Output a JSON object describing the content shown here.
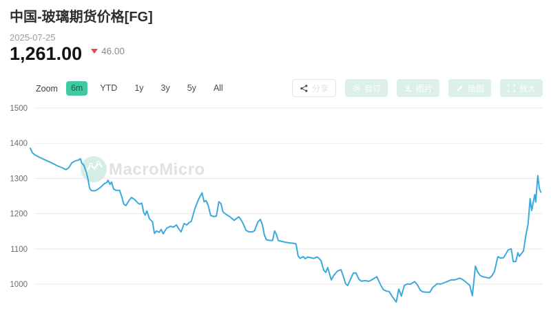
{
  "header": {
    "title": "中国-玻璃期货价格[FG]",
    "date": "2025-07-25",
    "price": "1,261.00",
    "change": "46.00",
    "change_direction": "down"
  },
  "toolbar": {
    "zoom_label": "Zoom",
    "ranges": [
      {
        "label": "6m",
        "active": true
      },
      {
        "label": "YTD",
        "active": false
      },
      {
        "label": "1y",
        "active": false
      },
      {
        "label": "3y",
        "active": false
      },
      {
        "label": "5y",
        "active": false
      },
      {
        "label": "All",
        "active": false
      }
    ],
    "actions": [
      {
        "label": "分享",
        "icon": "share-icon"
      },
      {
        "label": "自订",
        "icon": "gear-icon"
      },
      {
        "label": "图片",
        "icon": "download-icon"
      },
      {
        "label": "绘图",
        "icon": "pencil-icon"
      },
      {
        "label": "放大",
        "icon": "expand-icon"
      }
    ]
  },
  "watermark": {
    "text": "MacroMicro"
  },
  "colors": {
    "accent_teal": "#41c9a2",
    "line_blue": "#3aa9dc",
    "change_red": "#e5484d",
    "gridline": "#e9e9e9",
    "axis_label": "#6b6b6b"
  },
  "chart_data": {
    "type": "line",
    "title": "中国-玻璃期货价格[FG]",
    "window": "6m",
    "last_date": "2025-07-25",
    "last_value": 1261.0,
    "change": -46.0,
    "xlabel": "",
    "ylabel": "",
    "yticks": [
      1500,
      1400,
      1300,
      1200,
      1100,
      1000
    ],
    "ylim": [
      1000,
      1500
    ],
    "grid": true,
    "x_unit": "percent_of_6m_window",
    "series": [
      {
        "name": "玻璃期货价格[FG]",
        "color": "#3aa9dc",
        "points": [
          [
            0,
            1386
          ],
          [
            0.4,
            1373
          ],
          [
            0.9,
            1367
          ],
          [
            1.8,
            1360
          ],
          [
            2.7,
            1354
          ],
          [
            3.9,
            1346
          ],
          [
            5.3,
            1336
          ],
          [
            6.3,
            1330
          ],
          [
            7.0,
            1325
          ],
          [
            7.5,
            1330
          ],
          [
            8.1,
            1344
          ],
          [
            8.8,
            1350
          ],
          [
            9.4,
            1352
          ],
          [
            9.8,
            1356
          ],
          [
            10.1,
            1343
          ],
          [
            10.5,
            1337
          ],
          [
            10.9,
            1320
          ],
          [
            11.3,
            1298
          ],
          [
            11.6,
            1272
          ],
          [
            12.0,
            1265
          ],
          [
            12.7,
            1265
          ],
          [
            13.2,
            1269
          ],
          [
            13.9,
            1277
          ],
          [
            14.4,
            1284
          ],
          [
            15.0,
            1289
          ],
          [
            15.2,
            1295
          ],
          [
            15.6,
            1283
          ],
          [
            15.9,
            1290
          ],
          [
            16.3,
            1270
          ],
          [
            16.8,
            1266
          ],
          [
            17.5,
            1266
          ],
          [
            17.9,
            1248
          ],
          [
            18.3,
            1227
          ],
          [
            18.7,
            1223
          ],
          [
            19.3,
            1237
          ],
          [
            19.8,
            1246
          ],
          [
            20.5,
            1239
          ],
          [
            21.0,
            1231
          ],
          [
            21.4,
            1227
          ],
          [
            21.8,
            1230
          ],
          [
            22.2,
            1203
          ],
          [
            22.5,
            1196
          ],
          [
            22.8,
            1208
          ],
          [
            23.3,
            1186
          ],
          [
            23.9,
            1177
          ],
          [
            24.3,
            1144
          ],
          [
            24.7,
            1151
          ],
          [
            25.2,
            1147
          ],
          [
            25.6,
            1155
          ],
          [
            26.0,
            1143
          ],
          [
            26.7,
            1159
          ],
          [
            27.4,
            1164
          ],
          [
            28.0,
            1162
          ],
          [
            28.6,
            1168
          ],
          [
            29.0,
            1158
          ],
          [
            29.5,
            1148
          ],
          [
            30.1,
            1172
          ],
          [
            30.6,
            1168
          ],
          [
            31.1,
            1175
          ],
          [
            31.5,
            1178
          ],
          [
            32.2,
            1214
          ],
          [
            32.9,
            1240
          ],
          [
            33.6,
            1259
          ],
          [
            34.0,
            1234
          ],
          [
            34.4,
            1237
          ],
          [
            34.8,
            1224
          ],
          [
            35.3,
            1195
          ],
          [
            35.8,
            1192
          ],
          [
            36.4,
            1193
          ],
          [
            36.9,
            1234
          ],
          [
            37.3,
            1229
          ],
          [
            37.7,
            1205
          ],
          [
            38.3,
            1198
          ],
          [
            38.9,
            1193
          ],
          [
            39.5,
            1186
          ],
          [
            39.9,
            1181
          ],
          [
            40.4,
            1187
          ],
          [
            40.8,
            1191
          ],
          [
            41.2,
            1183
          ],
          [
            41.6,
            1173
          ],
          [
            42.2,
            1153
          ],
          [
            42.7,
            1149
          ],
          [
            43.4,
            1148
          ],
          [
            43.9,
            1152
          ],
          [
            44.5,
            1176
          ],
          [
            45.0,
            1184
          ],
          [
            45.4,
            1169
          ],
          [
            45.8,
            1140
          ],
          [
            46.2,
            1126
          ],
          [
            46.9,
            1124
          ],
          [
            47.4,
            1124
          ],
          [
            47.8,
            1151
          ],
          [
            48.2,
            1140
          ],
          [
            48.5,
            1124
          ],
          [
            49.2,
            1121
          ],
          [
            49.9,
            1119
          ],
          [
            50.7,
            1117
          ],
          [
            51.5,
            1116
          ],
          [
            52.0,
            1114
          ],
          [
            52.4,
            1080
          ],
          [
            52.8,
            1073
          ],
          [
            53.4,
            1078
          ],
          [
            53.8,
            1072
          ],
          [
            54.3,
            1077
          ],
          [
            54.9,
            1075
          ],
          [
            55.5,
            1073
          ],
          [
            56.1,
            1077
          ],
          [
            56.5,
            1073
          ],
          [
            56.9,
            1066
          ],
          [
            57.4,
            1040
          ],
          [
            57.8,
            1033
          ],
          [
            58.2,
            1047
          ],
          [
            58.9,
            1012
          ],
          [
            59.4,
            1025
          ],
          [
            60.1,
            1037
          ],
          [
            60.8,
            1041
          ],
          [
            61.3,
            1020
          ],
          [
            61.7,
            1001
          ],
          [
            62.1,
            996
          ],
          [
            62.7,
            1015
          ],
          [
            63.2,
            1031
          ],
          [
            63.7,
            1032
          ],
          [
            64.3,
            1014
          ],
          [
            64.8,
            1008
          ],
          [
            65.5,
            1010
          ],
          [
            66.2,
            1008
          ],
          [
            66.8,
            1012
          ],
          [
            67.8,
            1021
          ],
          [
            68.6,
            996
          ],
          [
            69.1,
            984
          ],
          [
            69.7,
            980
          ],
          [
            70.2,
            979
          ],
          [
            70.9,
            963
          ],
          [
            71.6,
            949
          ],
          [
            72.1,
            986
          ],
          [
            72.6,
            966
          ],
          [
            73.2,
            996
          ],
          [
            73.7,
            1000
          ],
          [
            74.4,
            1000
          ],
          [
            75.2,
            1007
          ],
          [
            75.7,
            999
          ],
          [
            76.3,
            983
          ],
          [
            76.8,
            978
          ],
          [
            77.5,
            977
          ],
          [
            78.2,
            977
          ],
          [
            78.7,
            990
          ],
          [
            79.6,
            1001
          ],
          [
            80.3,
            1000
          ],
          [
            81.0,
            1004
          ],
          [
            81.7,
            1008
          ],
          [
            82.3,
            1012
          ],
          [
            83.0,
            1012
          ],
          [
            84.0,
            1017
          ],
          [
            84.6,
            1013
          ],
          [
            85.3,
            1005
          ],
          [
            86.0,
            996
          ],
          [
            86.5,
            967
          ],
          [
            87.1,
            1051
          ],
          [
            87.5,
            1035
          ],
          [
            88.0,
            1025
          ],
          [
            88.5,
            1021
          ],
          [
            89.2,
            1019
          ],
          [
            89.8,
            1017
          ],
          [
            90.3,
            1023
          ],
          [
            90.8,
            1035
          ],
          [
            91.5,
            1078
          ],
          [
            92.0,
            1074
          ],
          [
            92.6,
            1075
          ],
          [
            93.1,
            1087
          ],
          [
            93.5,
            1097
          ],
          [
            94.1,
            1100
          ],
          [
            94.5,
            1064
          ],
          [
            95.0,
            1064
          ],
          [
            95.4,
            1089
          ],
          [
            95.7,
            1079
          ],
          [
            96.1,
            1087
          ],
          [
            96.5,
            1094
          ],
          [
            97.0,
            1141
          ],
          [
            97.4,
            1170
          ],
          [
            97.8,
            1243
          ],
          [
            98.1,
            1209
          ],
          [
            98.7,
            1254
          ],
          [
            98.9,
            1233
          ],
          [
            99.3,
            1308
          ],
          [
            99.6,
            1272
          ],
          [
            99.9,
            1261
          ]
        ]
      }
    ],
    "legend": []
  }
}
